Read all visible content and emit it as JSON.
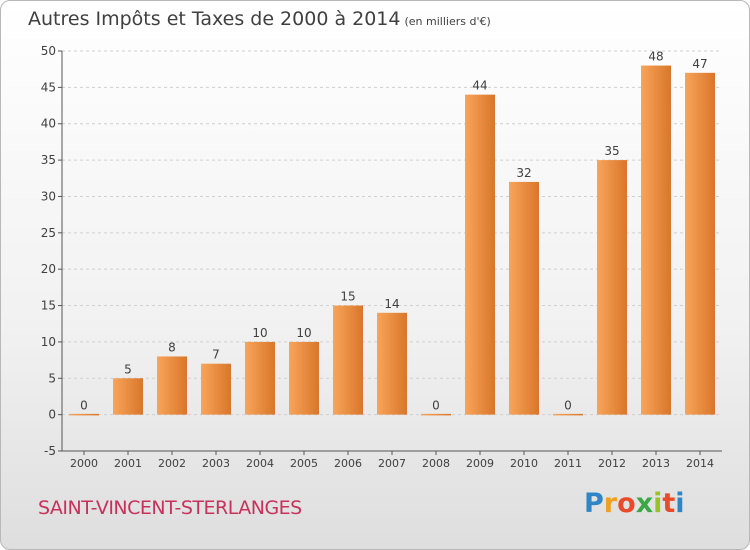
{
  "header": {
    "title": "Autres Impôts et Taxes de 2000 à 2014",
    "subtitle": "(en milliers d'€)"
  },
  "footer": {
    "commune": "SAINT-VINCENT-STERLANGES",
    "logo": "Proxiti",
    "logo_colors": [
      "#2e86c9",
      "#f0a020",
      "#e84a2a",
      "#3aa844",
      "#9bc12a",
      "#e84a2a",
      "#2e86c9"
    ]
  },
  "colors": {
    "bar_fill_top": "#f7a55a",
    "bar_fill_bottom": "#d9762a",
    "grid": "#d0d0d0",
    "axis": "#555555"
  },
  "chart_data": {
    "type": "bar",
    "categories": [
      "2000",
      "2001",
      "2002",
      "2003",
      "2004",
      "2005",
      "2006",
      "2007",
      "2008",
      "2009",
      "2010",
      "2011",
      "2012",
      "2013",
      "2014"
    ],
    "values": [
      0,
      5,
      8,
      7,
      10,
      10,
      15,
      14,
      0,
      44,
      32,
      0,
      35,
      48,
      47
    ],
    "ylim": [
      -5,
      50
    ],
    "yticks": [
      -5,
      0,
      5,
      10,
      15,
      20,
      25,
      30,
      35,
      40,
      45,
      50
    ],
    "grid": true,
    "legend": "none"
  }
}
